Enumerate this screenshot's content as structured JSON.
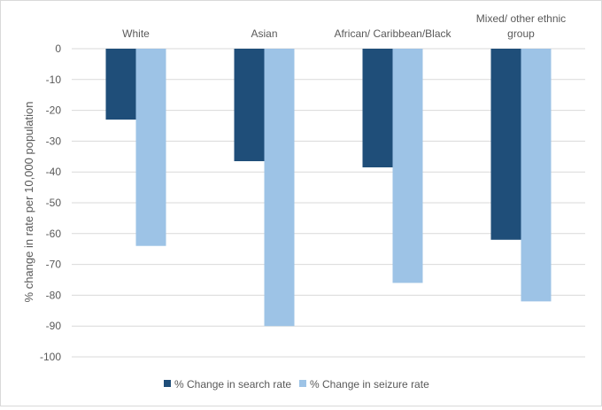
{
  "chart_data": {
    "type": "bar",
    "title": "",
    "xlabel": "",
    "ylabel": "% change in rate per 10,000 population",
    "ylim": [
      -100,
      0
    ],
    "y_ticks": [
      0,
      -10,
      -20,
      -30,
      -40,
      -50,
      -60,
      -70,
      -80,
      -90,
      -100
    ],
    "categories": [
      [
        "White"
      ],
      [
        "Asian"
      ],
      [
        "African/ Caribbean/Black"
      ],
      [
        "Mixed/ other ethnic",
        "group"
      ]
    ],
    "series": [
      {
        "name": "% Change in search rate",
        "color": "#1f4e79",
        "values": [
          -23,
          -36.5,
          -38.5,
          -62
        ]
      },
      {
        "name": "% Change in seizure rate",
        "color": "#9dc3e6",
        "values": [
          -64,
          -90,
          -76,
          -82
        ]
      }
    ],
    "grid": true,
    "legend": "bottom"
  }
}
